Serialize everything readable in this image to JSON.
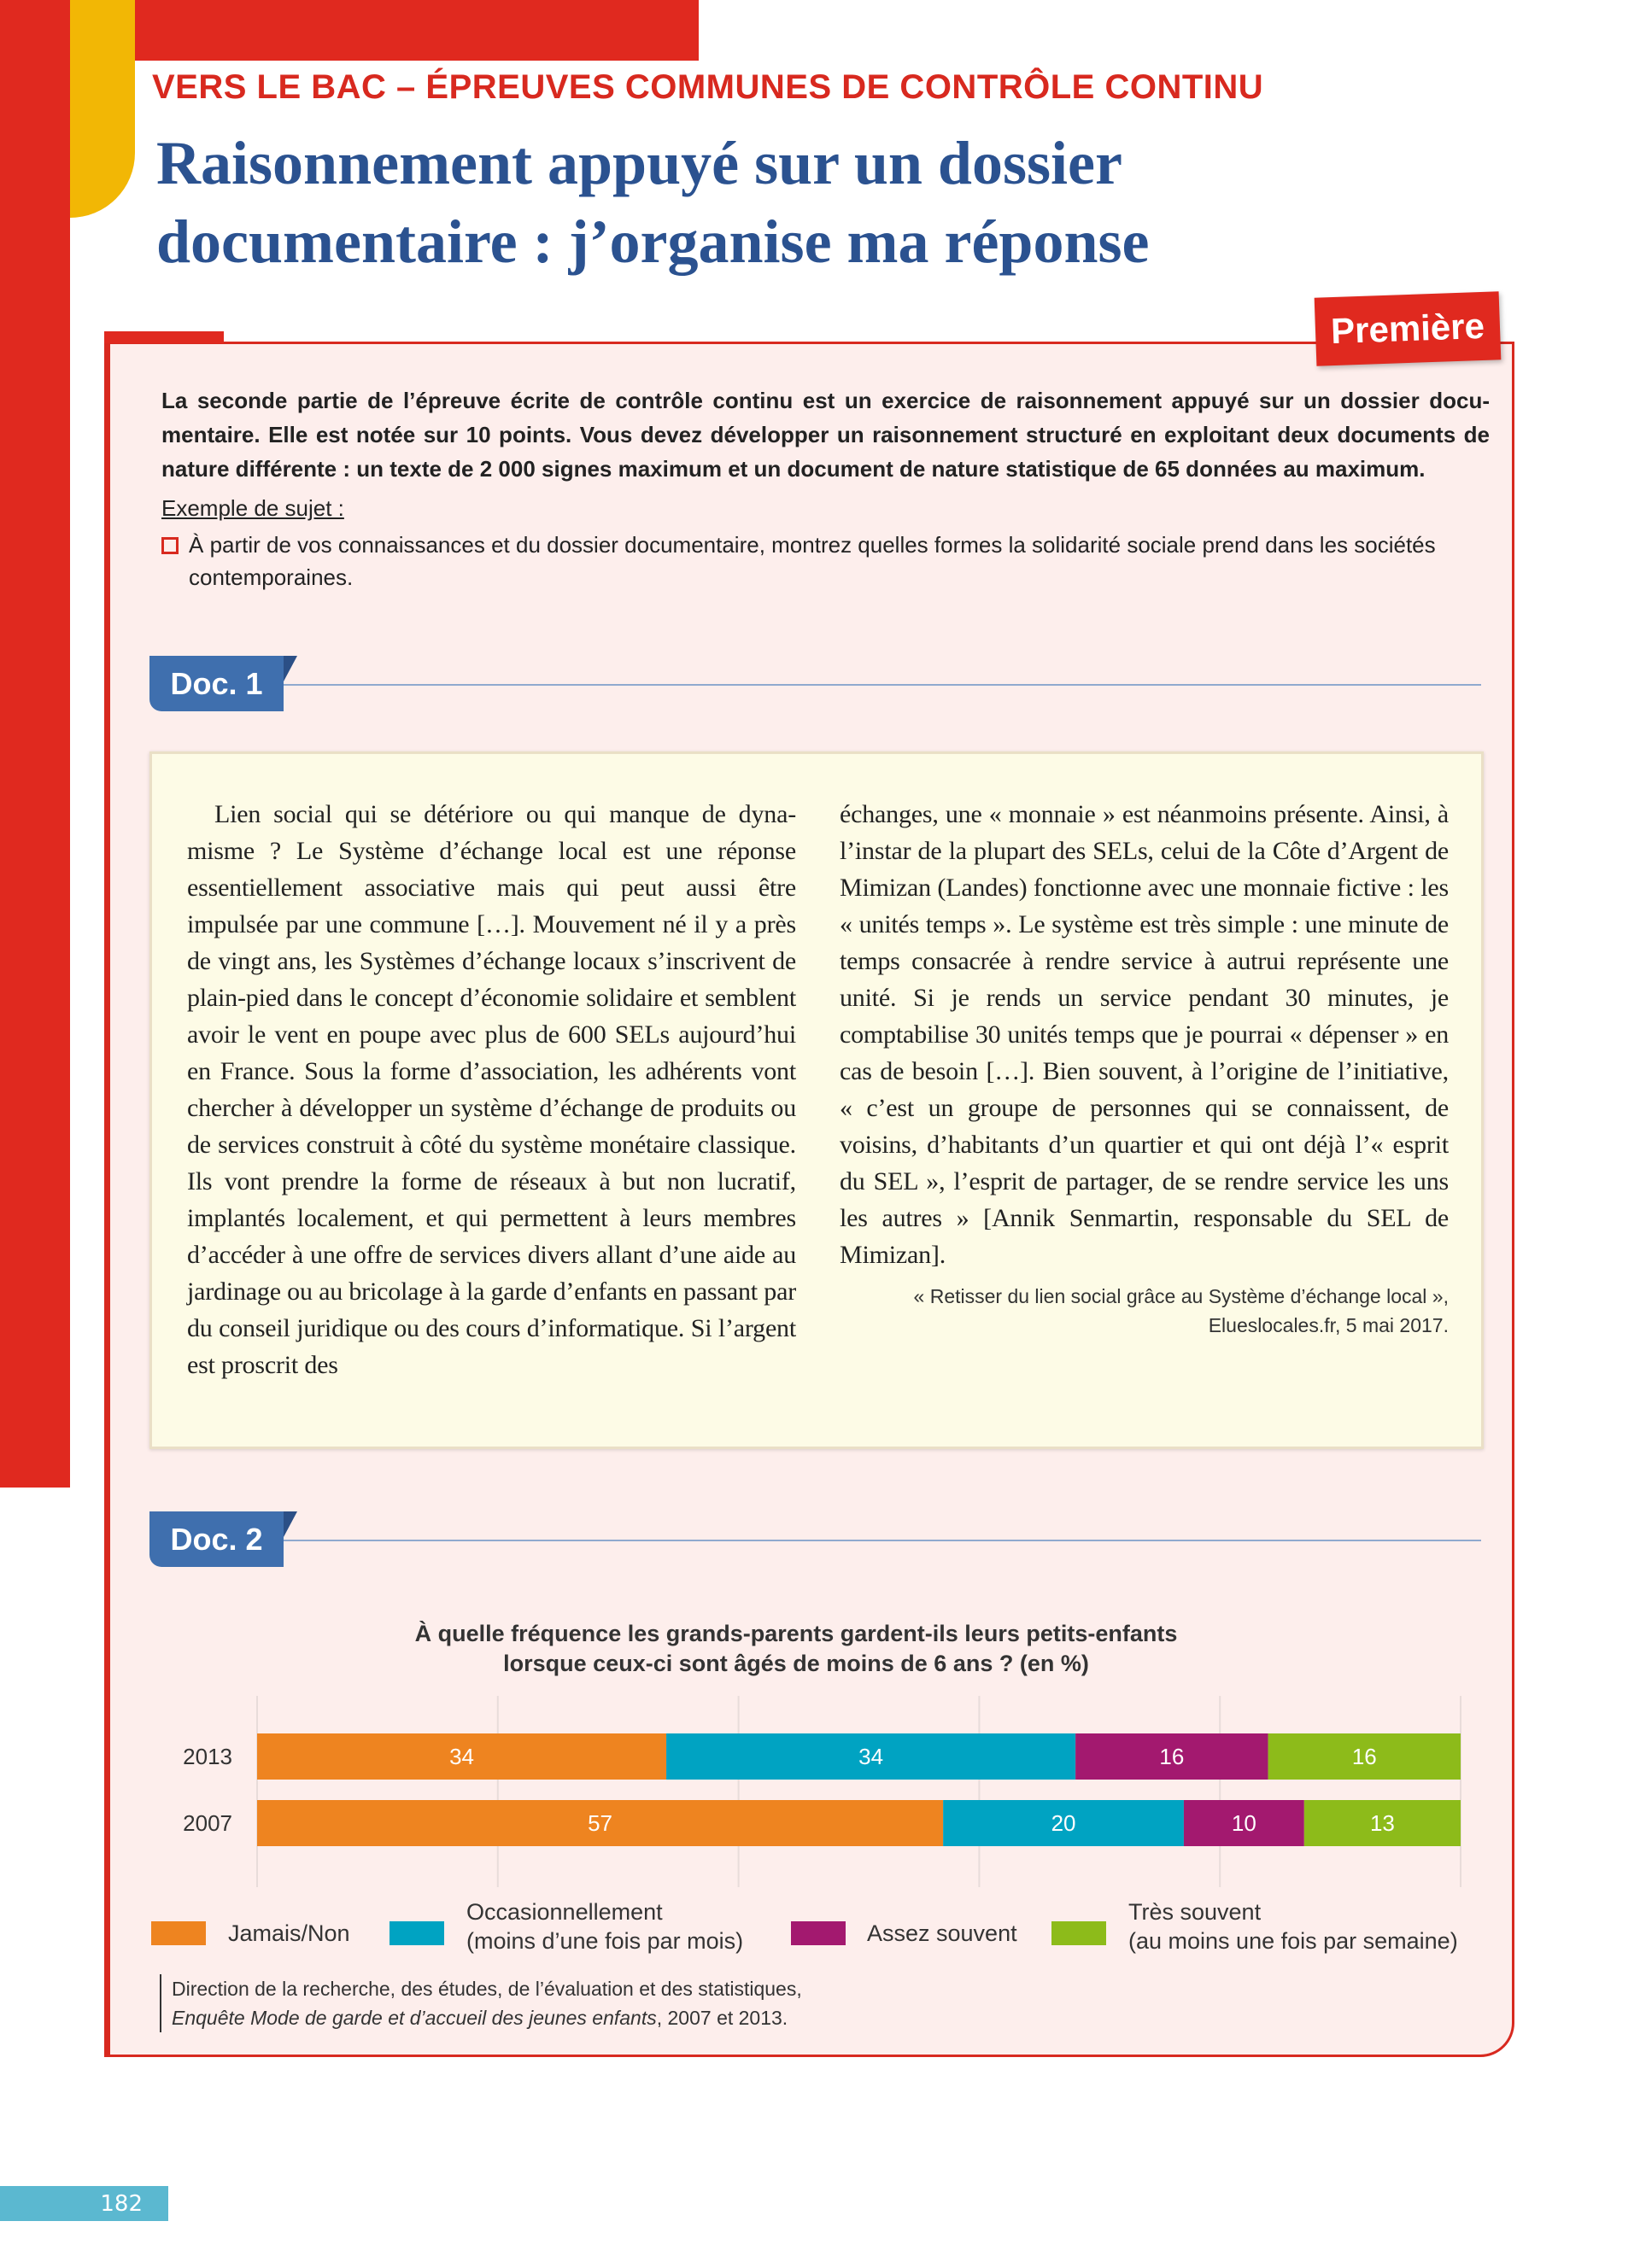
{
  "header": {
    "kicker": "VERS LE BAC – ÉPREUVES COMMUNES DE CONTRÔLE CONTINU",
    "title_line1": "Raisonnement appuyé sur un dossier",
    "title_line2": "documentaire : j’organise ma réponse",
    "level_badge": "Première"
  },
  "intro": {
    "lines": [
      "La seconde partie de l’épreuve écrite de contrôle continu est un exercice de raisonnement appuyé sur un dossier docu-",
      "mentaire. Elle est notée sur 10 points. Vous devez développer un raisonnement structuré en exploitant deux documents de",
      "nature différente : un texte de 2 000 signes maximum et un document de nature statistique de 65 données au maximum."
    ],
    "example_label": "Exemple de sujet :",
    "subject": "À partir de vos connaissances et du dossier documentaire, montrez quelles formes la solidarité sociale prend dans les sociétés contemporaines."
  },
  "doc1": {
    "tab": "Doc. 1",
    "left_lines": [
      "Lien social qui se détériore ou qui manque de dyna-",
      "misme ? Le Système d’échange local est une réponse",
      "essentiellement associative mais qui peut aussi être",
      "impulsée par une commune […]. Mouvement né il",
      "y a près de vingt ans, les Systèmes d’échange locaux",
      "s’inscrivent de plain-pied dans le concept d’économie",
      "solidaire et semblent avoir le vent en poupe avec plus",
      "de 600 SELs aujourd’hui en France. Sous la forme",
      "d’association, les adhérents vont chercher à développer",
      "un système d’échange de produits ou de services",
      "construit à côté du système monétaire classique. Ils",
      "vont prendre la forme de réseaux à but non lucratif,",
      "implantés localement, et qui permettent à leurs",
      "membres d’accéder à une offre de services divers",
      "allant d’une aide au jardinage ou au bricolage à la",
      "garde d’enfants en passant par du conseil juridique ou",
      "des cours d’informatique. Si l’argent est proscrit des"
    ],
    "right_lines": [
      "échanges, une « monnaie » est néanmoins présente.",
      "Ainsi, à l’instar de la plupart des SELs, celui de la Côte",
      "d’Argent de Mimizan (Landes) fonctionne avec une",
      "monnaie fictive : les « unités temps ». Le système est",
      "très simple : une minute de temps consacrée à rendre",
      "service à autrui représente une unité. Si je rends un",
      "service pendant 30 minutes, je comptabilise 30 unités",
      "temps que je pourrai « dépenser » en cas de besoin",
      "[…]. Bien souvent, à l’origine de l’initiative, « c’est un",
      "groupe de personnes qui se connaissent, de voisins,",
      "d’habitants d’un quartier et qui ont déjà l’« esprit du",
      "SEL », l’esprit de partager, de se rendre service les uns",
      "les autres » [Annik Senmartin, responsable du SEL de",
      "Mimizan]."
    ],
    "source_line1": "« Retisser du lien social grâce au Système d’échange local »,",
    "source_line2": "Elueslocales.fr, 5 mai 2017."
  },
  "doc2": {
    "tab": "Doc. 2",
    "source_line1": "Direction de la recherche, des études, de l’évaluation et des statistiques,",
    "source_line2_italic": "Enquête Mode de garde et d’accueil des jeunes enfants",
    "source_line2_rest": ", 2007 et 2013."
  },
  "chart_data": {
    "type": "bar",
    "orientation": "horizontal",
    "stacked": true,
    "title_line1": "À quelle fréquence les grands-parents gardent-ils leurs petits-enfants",
    "title_line2": "lorsque ceux-ci sont âgés de moins de 6 ans ? (en %)",
    "categories": [
      "2013",
      "2007"
    ],
    "series": [
      {
        "name": "Jamais/Non",
        "name_line2": "",
        "color": "#ee8420",
        "values": [
          34,
          57
        ]
      },
      {
        "name": "Occasionnellement",
        "name_line2": "(moins d’une fois par mois)",
        "color": "#00a3c2",
        "values": [
          34,
          20
        ]
      },
      {
        "name": "Assez souvent",
        "name_line2": "",
        "color": "#a3196f",
        "values": [
          16,
          10
        ]
      },
      {
        "name": "Très souvent",
        "name_line2": "(au moins une fois par semaine)",
        "color": "#8dbb1a",
        "values": [
          16,
          13
        ]
      }
    ],
    "xlim": [
      0,
      100
    ],
    "grid": true,
    "legend": "bottom",
    "data_labels": true
  },
  "footer": {
    "page_number": "182"
  },
  "colors": {
    "red": "#e0291f",
    "yellow": "#f2b705",
    "blue": "#2b5290",
    "page_tab": "#5bb8d0"
  }
}
